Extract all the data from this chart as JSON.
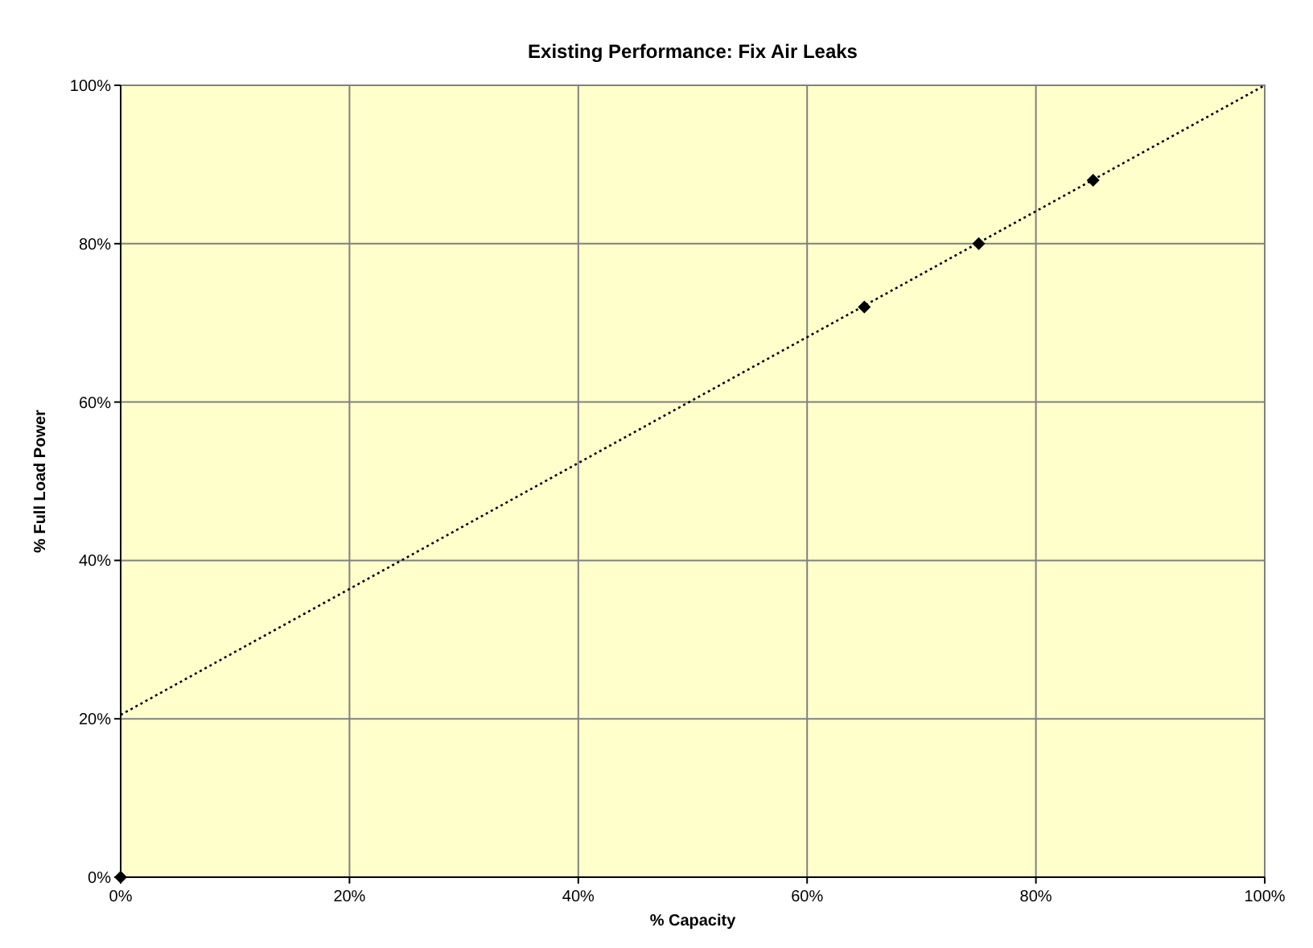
{
  "chart_data": {
    "type": "scatter",
    "title": "Existing Performance: Fix Air Leaks",
    "xlabel": "% Capacity",
    "ylabel": "% Full Load Power",
    "series": [
      {
        "color": "#000000",
        "marker": "diamond",
        "x": [
          0,
          65,
          75,
          85
        ],
        "values": [
          0,
          72,
          80,
          88
        ]
      },
      {
        "type": "line",
        "color": "#000000",
        "marker": "none",
        "line_style": "dotted",
        "x": [
          0,
          100
        ],
        "values": [
          20.5,
          100
        ]
      }
    ],
    "xlim": [
      0,
      100
    ],
    "ylim": [
      0,
      100
    ],
    "xticks": [
      {
        "value": 0,
        "label": "0%"
      },
      {
        "value": 20,
        "label": "20%"
      },
      {
        "value": 40,
        "label": "40%"
      },
      {
        "value": 60,
        "label": "60%"
      },
      {
        "value": 80,
        "label": "80%"
      },
      {
        "value": 100,
        "label": "100%"
      }
    ],
    "yticks": [
      {
        "value": 0,
        "label": "0%"
      },
      {
        "value": 20,
        "label": "20%"
      },
      {
        "value": 40,
        "label": "40%"
      },
      {
        "value": 60,
        "label": "60%"
      },
      {
        "value": 80,
        "label": "80%"
      },
      {
        "value": 100,
        "label": "100%"
      }
    ],
    "grid": true
  }
}
